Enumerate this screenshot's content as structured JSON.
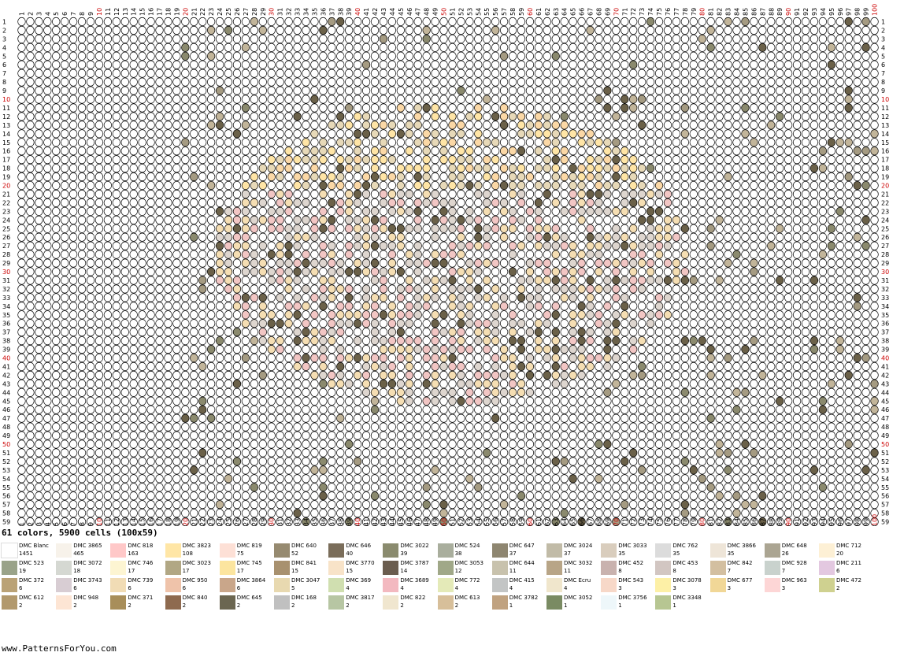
{
  "pattern": {
    "summary": "61 colors, 5900 cells (100x59)",
    "columns": 100,
    "rows": 59,
    "major_tick_color": "#cc0000",
    "minor_tick_color": "#000000",
    "grid_line_color": "#000000",
    "empty_cell_color": "#ffffff",
    "palette_fills": [
      "#6b6149",
      "#8b8a6e",
      "#a59b82",
      "#c2b59a",
      "#e7d9b8",
      "#f5deb3",
      "#f2c6c4",
      "#fbd8a6",
      "#ffe5a6",
      "#ded6cf"
    ]
  },
  "legend": [
    {
      "name": "DMC Blanc",
      "count": "1451",
      "color": "#ffffff"
    },
    {
      "name": "DMC 3865",
      "count": "465",
      "color": "#f7f2ea"
    },
    {
      "name": "DMC 818",
      "count": "163",
      "color": "#ffc8c8"
    },
    {
      "name": "DMC 3823",
      "count": "108",
      "color": "#ffe6a6"
    },
    {
      "name": "DMC 819",
      "count": "75",
      "color": "#fde0d6"
    },
    {
      "name": "DMC 640",
      "count": "52",
      "color": "#968a70"
    },
    {
      "name": "DMC 646",
      "count": "40",
      "color": "#7a6d5a"
    },
    {
      "name": "DMC 3022",
      "count": "39",
      "color": "#8a8b6e"
    },
    {
      "name": "DMC 524",
      "count": "38",
      "color": "#a9ae9d"
    },
    {
      "name": "DMC 647",
      "count": "37",
      "color": "#8e8670"
    },
    {
      "name": "DMC 3024",
      "count": "37",
      "color": "#c1bba7"
    },
    {
      "name": "DMC 3033",
      "count": "35",
      "color": "#d9cdbd"
    },
    {
      "name": "DMC 762",
      "count": "35",
      "color": "#dcdcdc"
    },
    {
      "name": "DMC 3866",
      "count": "35",
      "color": "#eee5d8"
    },
    {
      "name": "DMC 648",
      "count": "26",
      "color": "#aba592"
    },
    {
      "name": "DMC 712",
      "count": "20",
      "color": "#fdf0d5"
    },
    {
      "name": "DMC 523",
      "count": "19",
      "color": "#9aa389"
    },
    {
      "name": "DMC 3072",
      "count": "18",
      "color": "#d5d8d2"
    },
    {
      "name": "DMC 746",
      "count": "17",
      "color": "#fdf5d2"
    },
    {
      "name": "DMC 3023",
      "count": "17",
      "color": "#b1a784"
    },
    {
      "name": "DMC 745",
      "count": "17",
      "color": "#fce59f"
    },
    {
      "name": "DMC 841",
      "count": "15",
      "color": "#a8916f"
    },
    {
      "name": "DMC 3770",
      "count": "15",
      "color": "#f8e3c8"
    },
    {
      "name": "DMC 3787",
      "count": "14",
      "color": "#6b5d4f"
    },
    {
      "name": "DMC 3053",
      "count": "12",
      "color": "#a0a888"
    },
    {
      "name": "DMC 644",
      "count": "11",
      "color": "#c8c2ad"
    },
    {
      "name": "DMC 3032",
      "count": "11",
      "color": "#b8a587"
    },
    {
      "name": "DMC 452",
      "count": "8",
      "color": "#c9b2ae"
    },
    {
      "name": "DMC 453",
      "count": "8",
      "color": "#d2c6c2"
    },
    {
      "name": "DMC 842",
      "count": "7",
      "color": "#d3bfa0"
    },
    {
      "name": "DMC 928",
      "count": "7",
      "color": "#c9d2cd"
    },
    {
      "name": "DMC 211",
      "count": "6",
      "color": "#e3c8e0"
    },
    {
      "name": "DMC 372",
      "count": "6",
      "color": "#baa276"
    },
    {
      "name": "DMC 3743",
      "count": "6",
      "color": "#d8cdd3"
    },
    {
      "name": "DMC 739",
      "count": "6",
      "color": "#f1dcb5"
    },
    {
      "name": "DMC 950",
      "count": "6",
      "color": "#efc3aa"
    },
    {
      "name": "DMC 3864",
      "count": "6",
      "color": "#c9a68a"
    },
    {
      "name": "DMC 3047",
      "count": "5",
      "color": "#e8d9b0"
    },
    {
      "name": "DMC 369",
      "count": "4",
      "color": "#d0dfb0"
    },
    {
      "name": "DMC 3689",
      "count": "4",
      "color": "#f3b9c0"
    },
    {
      "name": "DMC 772",
      "count": "4",
      "color": "#e4eab8"
    },
    {
      "name": "DMC 415",
      "count": "4",
      "color": "#c3c5c5"
    },
    {
      "name": "DMC Ecru",
      "count": "4",
      "color": "#f0e6cc"
    },
    {
      "name": "DMC 543",
      "count": "3",
      "color": "#f7d8c8"
    },
    {
      "name": "DMC 3078",
      "count": "3",
      "color": "#fdf0a6"
    },
    {
      "name": "DMC 677",
      "count": "3",
      "color": "#f1d797"
    },
    {
      "name": "DMC 963",
      "count": "3",
      "color": "#fdd6d6"
    },
    {
      "name": "DMC 472",
      "count": "2",
      "color": "#cfd190"
    },
    {
      "name": "DMC 612",
      "count": "2",
      "color": "#b2996d"
    },
    {
      "name": "DMC 948",
      "count": "2",
      "color": "#fde5d4"
    },
    {
      "name": "DMC 371",
      "count": "2",
      "color": "#a88e5a"
    },
    {
      "name": "DMC 840",
      "count": "2",
      "color": "#8e6a4f"
    },
    {
      "name": "DMC 645",
      "count": "2",
      "color": "#6b6651"
    },
    {
      "name": "DMC 168",
      "count": "2",
      "color": "#c0c0c0"
    },
    {
      "name": "DMC 3817",
      "count": "2",
      "color": "#b7c6a3"
    },
    {
      "name": "DMC 822",
      "count": "2",
      "color": "#f0e6cf"
    },
    {
      "name": "DMC 613",
      "count": "2",
      "color": "#d7bf9a"
    },
    {
      "name": "DMC 3782",
      "count": "1",
      "color": "#c0a280"
    },
    {
      "name": "DMC 3052",
      "count": "1",
      "color": "#7a8b63"
    },
    {
      "name": "DMC 3756",
      "count": "1",
      "color": "#eef7fa"
    },
    {
      "name": "DMC 3348",
      "count": "1",
      "color": "#b7c692"
    }
  ],
  "footer": "www.PatternsForYou.com"
}
